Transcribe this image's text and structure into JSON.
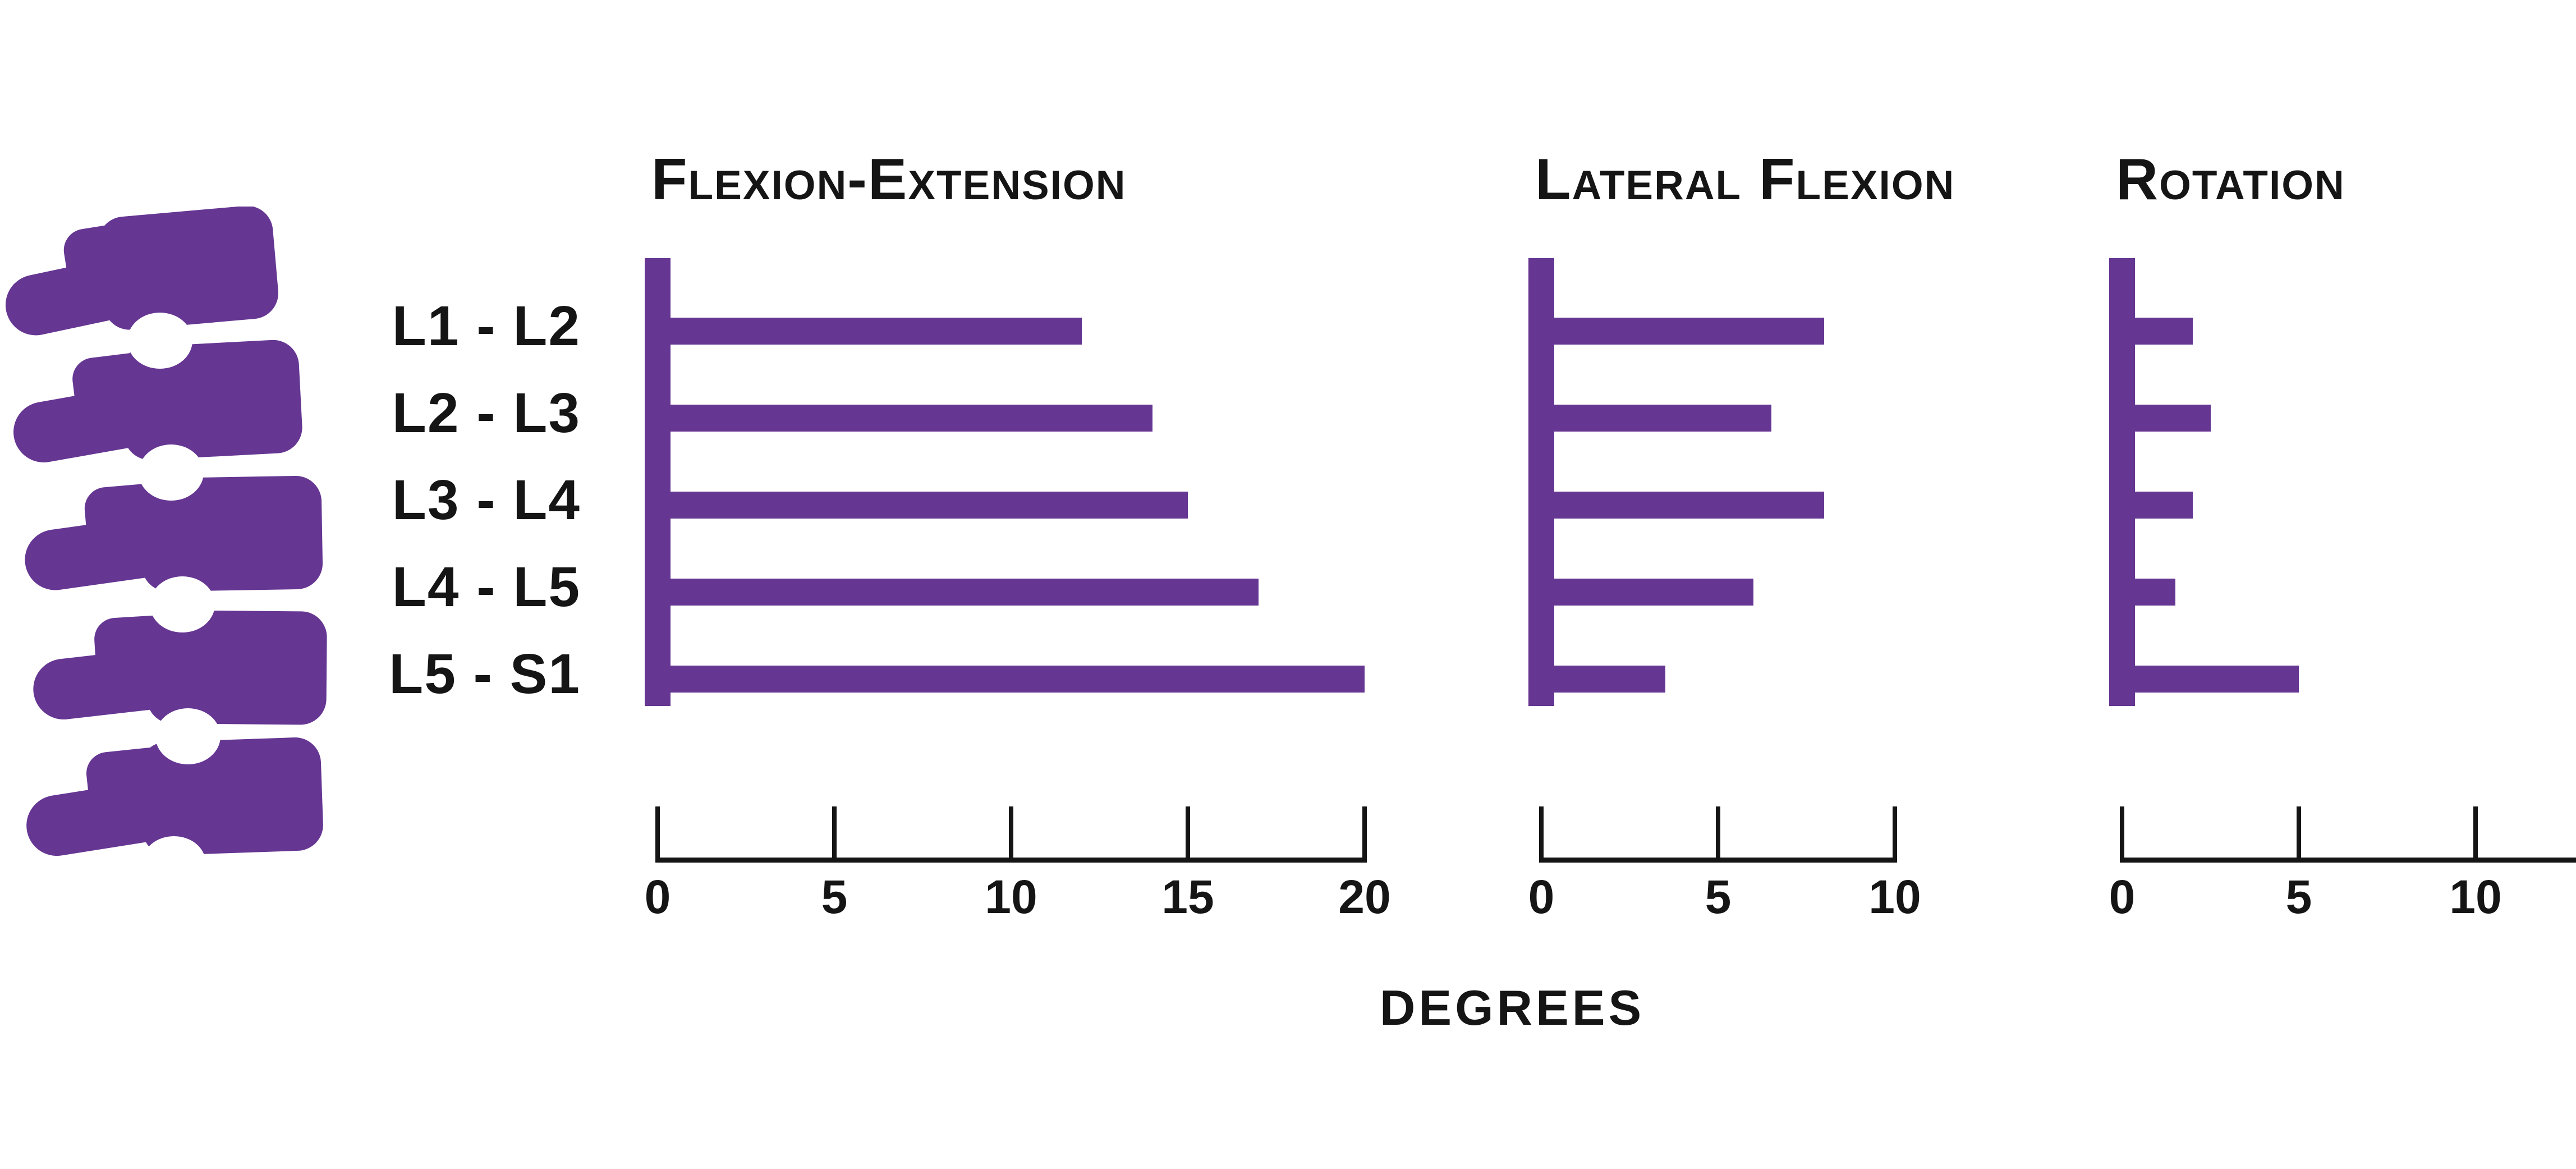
{
  "page": {
    "background": "#ffffff"
  },
  "colors": {
    "accent": "#663693",
    "ink": "#151515"
  },
  "illustration": {
    "name": "lumbar-spine-side-view",
    "vertebra_count": 5
  },
  "row_labels": [
    "L1 - L2",
    "L2 - L3",
    "L3 - L4",
    "L4 - L5",
    "L5 - S1"
  ],
  "axis_unit_label": "DEGREES",
  "chart_data": [
    {
      "type": "bar",
      "orientation": "horizontal",
      "title": "Flexion-Extension",
      "categories": [
        "L1 - L2",
        "L2 - L3",
        "L3 - L4",
        "L4 - L5",
        "L5 - S1"
      ],
      "values": [
        12,
        14,
        15,
        17,
        20
      ],
      "unit": "degrees",
      "xlabel": "DEGREES",
      "xticks": [
        0,
        5,
        10,
        15,
        20
      ],
      "xlim": [
        0,
        20
      ],
      "grid": false,
      "legend": false,
      "bar_color": "#663693"
    },
    {
      "type": "bar",
      "orientation": "horizontal",
      "title": "Lateral Flexion",
      "categories": [
        "L1 - L2",
        "L2 - L3",
        "L3 - L4",
        "L4 - L5",
        "L5 - S1"
      ],
      "values": [
        8,
        6.5,
        8,
        6,
        3.5
      ],
      "unit": "degrees",
      "xlabel": "DEGREES",
      "xticks": [
        0,
        5,
        10
      ],
      "xlim": [
        0,
        10
      ],
      "grid": false,
      "legend": false,
      "bar_color": "#663693"
    },
    {
      "type": "bar",
      "orientation": "horizontal",
      "title": "Rotation",
      "categories": [
        "L1 - L2",
        "L2 - L3",
        "L3 - L4",
        "L4 - L5",
        "L5 - S1"
      ],
      "values": [
        2,
        2.5,
        2,
        1.5,
        5
      ],
      "unit": "degrees",
      "xlabel": "DEGREES",
      "xticks": [
        0,
        5,
        10
      ],
      "xlim": [
        0,
        13
      ],
      "grid": false,
      "legend": false,
      "bar_color": "#663693"
    }
  ]
}
